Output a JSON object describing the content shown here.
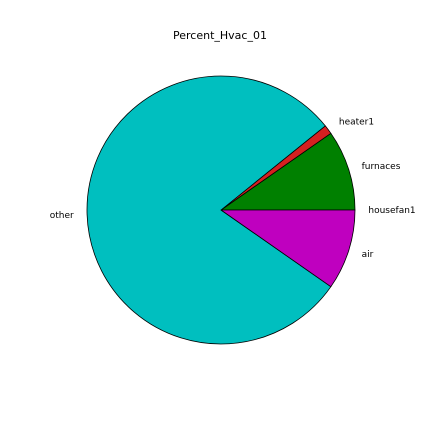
{
  "chart_data": {
    "type": "pie",
    "title": "Percent_Hvac_01",
    "start_angle_deg": 0,
    "direction": "counterclockwise",
    "slices": [
      {
        "label": "housefan1",
        "value": 0,
        "color": "#0000bf"
      },
      {
        "label": "furnaces",
        "value": 9.7,
        "color": "#008000"
      },
      {
        "label": "heater1",
        "value": 1.1,
        "color": "#d62020"
      },
      {
        "label": "other",
        "value": 79.5,
        "color": "#00bfbf"
      },
      {
        "label": "air",
        "value": 9.7,
        "color": "#bf00bf"
      }
    ]
  }
}
